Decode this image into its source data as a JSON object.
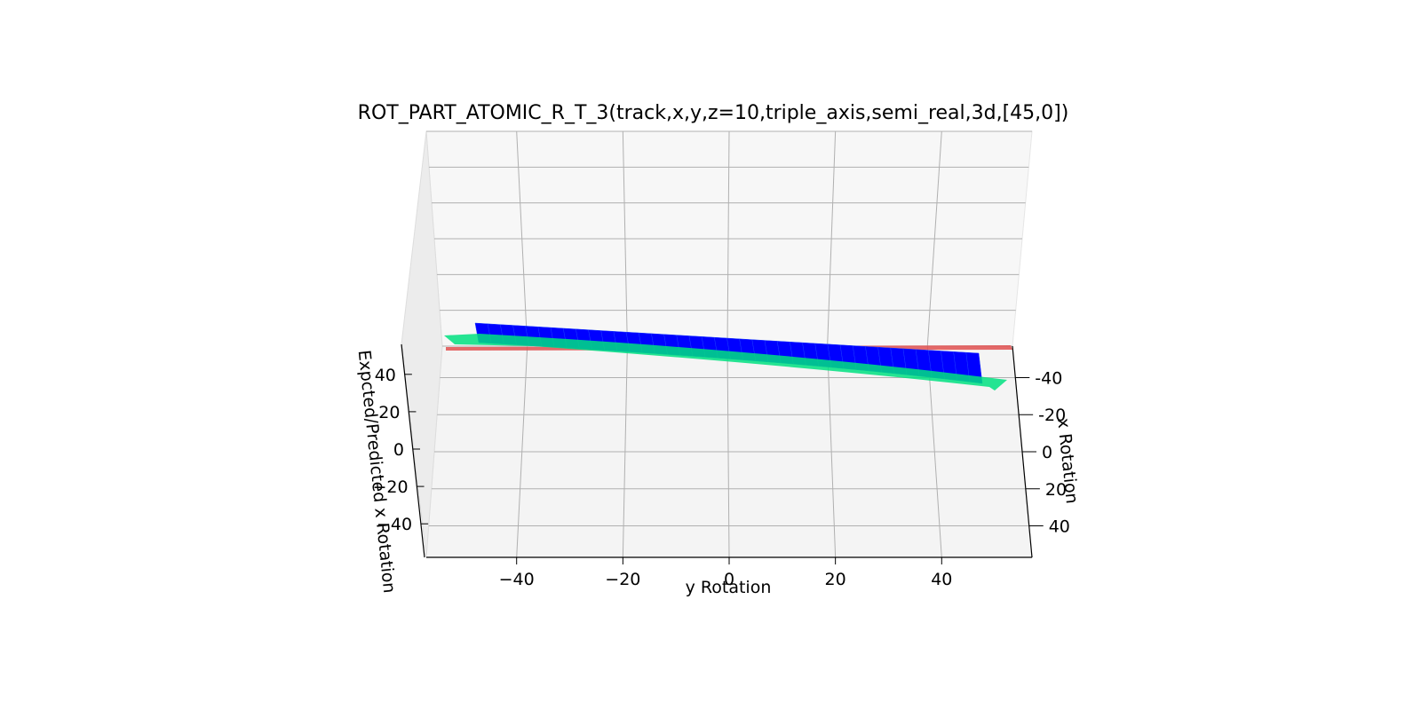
{
  "chart_data": {
    "type": "surface3d",
    "title": "ROT_PART_ATOMIC_R_T_3(track,x,y,z=10,triple_axis,semi_real,3d,[45,0])",
    "xlabel": "x Rotation",
    "ylabel": "y Rotation",
    "zlabel": "Expcted/Predicted x Rotation",
    "x_ticks": [
      "-40",
      "-20",
      "0",
      "20",
      "40"
    ],
    "y_ticks": [
      "−40",
      "−20",
      "0",
      "20",
      "40"
    ],
    "z_ticks": [
      "−40",
      "−20",
      "0",
      "20",
      "40"
    ],
    "x_tick_values": [
      -40,
      -20,
      0,
      20,
      40
    ],
    "y_tick_values": [
      -40,
      -20,
      0,
      20,
      40
    ],
    "z_tick_values": [
      -40,
      -20,
      0,
      20,
      40
    ],
    "view": {
      "elev": 45,
      "azim": 0
    },
    "series": [
      {
        "role": "expected-plane",
        "colormap": "red",
        "color": "#e05050"
      },
      {
        "role": "predicted-surface",
        "colormap": "winter",
        "colors": [
          "#0000ff",
          "#00ff80"
        ]
      }
    ],
    "colors": {
      "pane": "#f4f4f4",
      "grid": "#b0b0b0",
      "expected": "#e05050",
      "predicted_low": "#0000ff",
      "predicted_high": "#00e080"
    }
  }
}
